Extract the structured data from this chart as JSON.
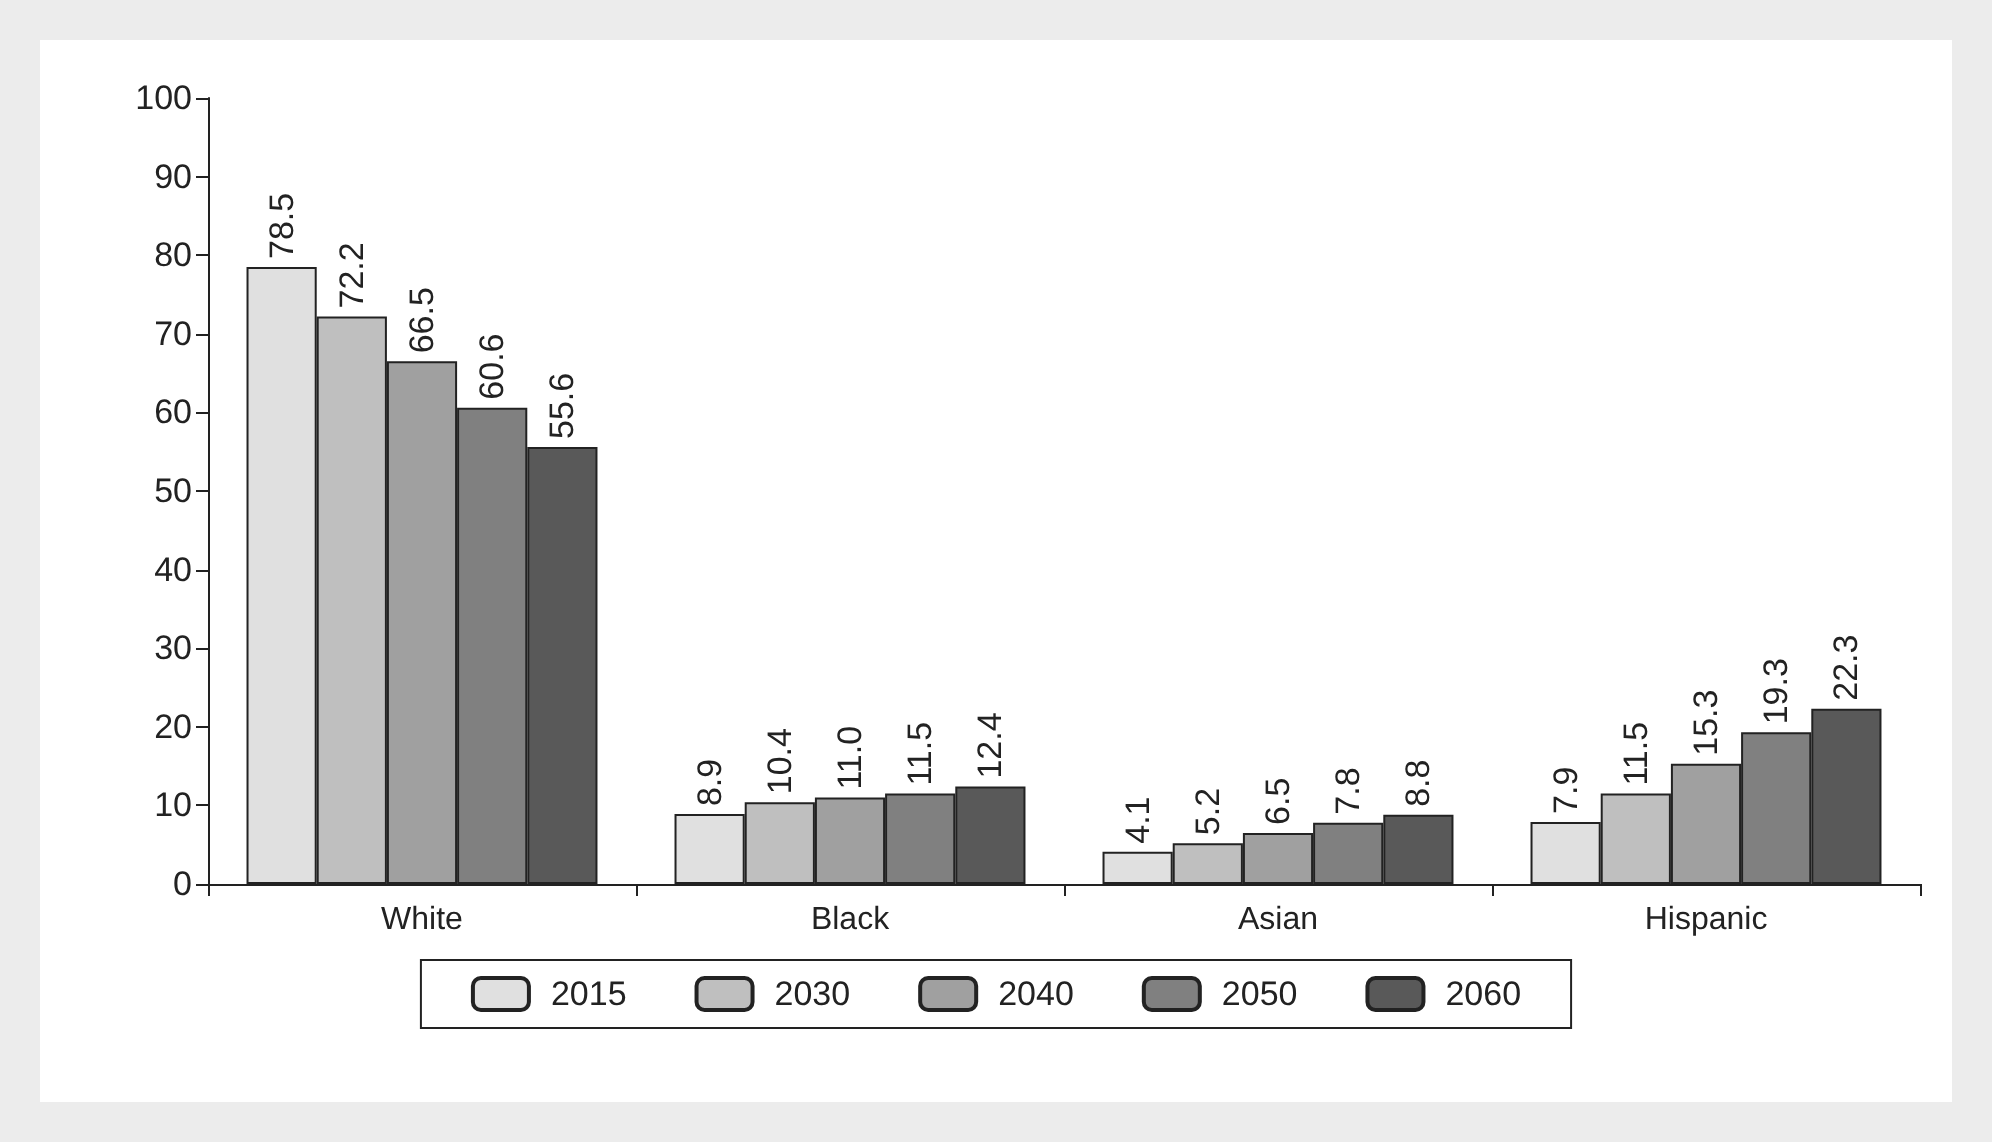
{
  "chart_data": {
    "type": "bar",
    "categories": [
      "White",
      "Black",
      "Asian",
      "Hispanic"
    ],
    "ylim": [
      0,
      100
    ],
    "yticks": [
      0,
      10,
      20,
      30,
      40,
      50,
      60,
      70,
      80,
      90,
      100
    ],
    "grid": false,
    "legend": "bottom",
    "series": [
      {
        "name": "2015",
        "color": "#e0e0e0",
        "values": [
          78.5,
          8.9,
          4.1,
          7.9
        ],
        "value_labels": [
          "78.5",
          "8.9",
          "4.1",
          "7.9"
        ]
      },
      {
        "name": "2030",
        "color": "#bfbfbf",
        "values": [
          72.2,
          10.4,
          5.2,
          11.5
        ],
        "value_labels": [
          "72.2",
          "10.4",
          "5.2",
          "11.5"
        ]
      },
      {
        "name": "2040",
        "color": "#a0a0a0",
        "values": [
          66.5,
          11.0,
          6.5,
          15.3
        ],
        "value_labels": [
          "66.5",
          "11.0",
          "6.5",
          "15.3"
        ]
      },
      {
        "name": "2050",
        "color": "#808080",
        "values": [
          60.6,
          11.5,
          7.8,
          19.3
        ],
        "value_labels": [
          "60.6",
          "11.5",
          "7.8",
          "19.3"
        ]
      },
      {
        "name": "2060",
        "color": "#595959",
        "values": [
          55.6,
          12.4,
          8.8,
          22.3
        ],
        "value_labels": [
          "55.6",
          "12.4",
          "8.8",
          "22.3"
        ]
      }
    ]
  }
}
